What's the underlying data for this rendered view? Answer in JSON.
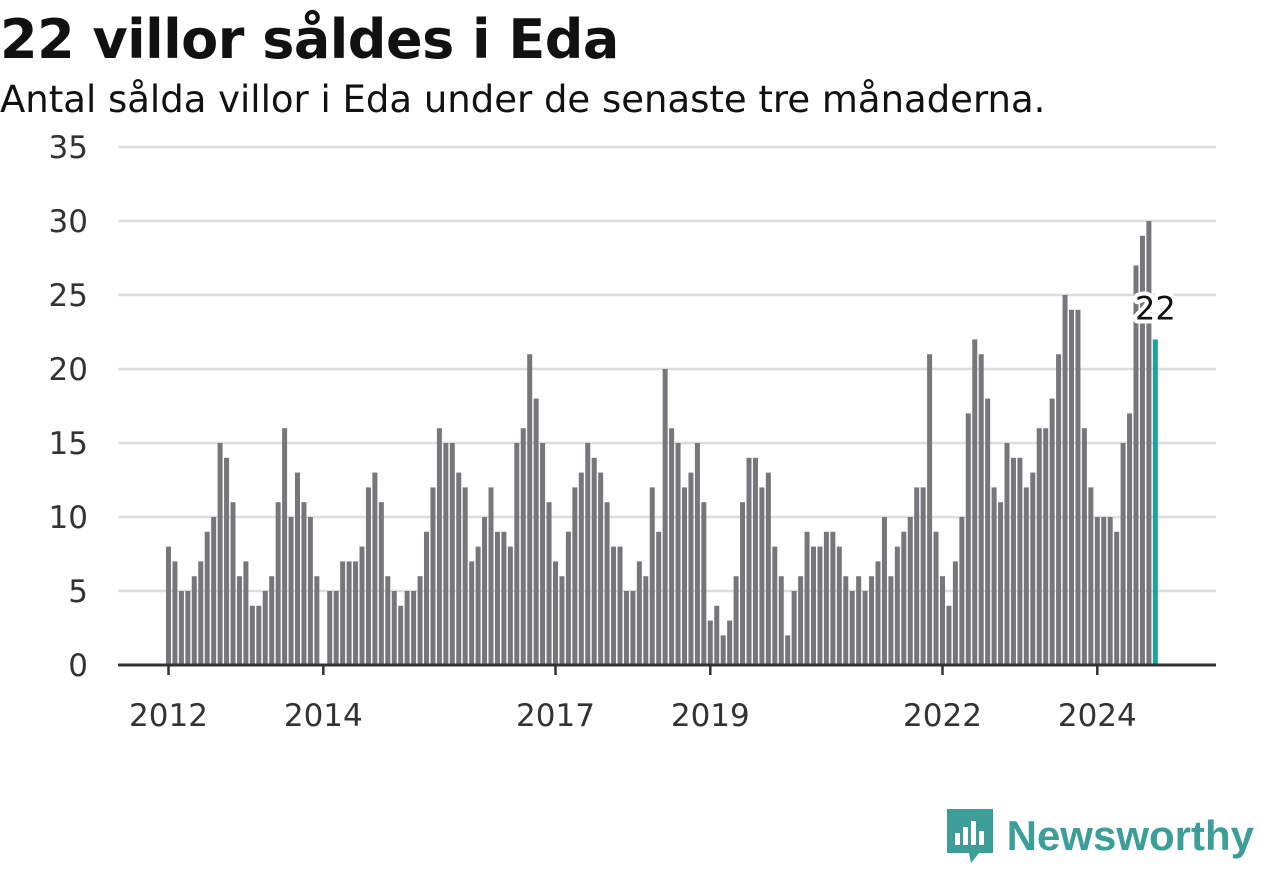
{
  "title": "22 villor såldes i Eda",
  "subtitle": "Antal sålda villor i Eda under de senaste tre månaderna.",
  "brand": {
    "name": "Newsworthy",
    "icon": "newsworthy-logo-icon"
  },
  "colors": {
    "bar": "#77767b",
    "highlight": "#1aa3a0",
    "grid": "#dddddd",
    "axis": "#333333",
    "brand": "#3d9e99"
  },
  "chart_data": {
    "type": "bar",
    "title": "22 villor såldes i Eda",
    "subtitle": "Antal sålda villor i Eda under de senaste tre månaderna.",
    "start_month": "2012-01",
    "frequency": "monthly",
    "values": [
      8,
      7,
      5,
      5,
      6,
      7,
      9,
      10,
      15,
      14,
      11,
      6,
      7,
      4,
      4,
      5,
      6,
      11,
      16,
      10,
      13,
      11,
      10,
      6,
      0,
      5,
      5,
      7,
      7,
      7,
      8,
      12,
      13,
      11,
      6,
      5,
      4,
      5,
      5,
      6,
      9,
      12,
      16,
      15,
      15,
      13,
      12,
      7,
      8,
      10,
      12,
      9,
      9,
      8,
      15,
      16,
      21,
      18,
      15,
      11,
      7,
      6,
      9,
      12,
      13,
      15,
      14,
      13,
      11,
      8,
      8,
      5,
      5,
      7,
      6,
      12,
      9,
      20,
      16,
      15,
      12,
      13,
      15,
      11,
      3,
      4,
      2,
      3,
      6,
      11,
      14,
      14,
      12,
      13,
      8,
      6,
      2,
      5,
      6,
      9,
      8,
      8,
      9,
      9,
      8,
      6,
      5,
      6,
      5,
      6,
      7,
      10,
      6,
      8,
      9,
      10,
      12,
      12,
      21,
      9,
      6,
      4,
      7,
      10,
      17,
      22,
      21,
      18,
      12,
      11,
      15,
      14,
      14,
      12,
      13,
      16,
      16,
      18,
      21,
      25,
      24,
      24,
      16,
      12,
      10,
      10,
      10,
      9,
      15,
      17,
      27,
      29,
      30,
      22
    ],
    "highlight": {
      "label": "22",
      "value": 22
    },
    "y_ticks": [
      "0",
      "5",
      "10",
      "15",
      "20",
      "25",
      "30",
      "35"
    ],
    "ylim": [
      0,
      35
    ],
    "x_ticks": [
      {
        "label": "2012",
        "month": "2012-01"
      },
      {
        "label": "2014",
        "month": "2014-01"
      },
      {
        "label": "2017",
        "month": "2017-01"
      },
      {
        "label": "2019",
        "month": "2019-01"
      },
      {
        "label": "2022",
        "month": "2022-01"
      },
      {
        "label": "2024",
        "month": "2024-01"
      }
    ],
    "grid": true,
    "xlabel": "",
    "ylabel": ""
  }
}
